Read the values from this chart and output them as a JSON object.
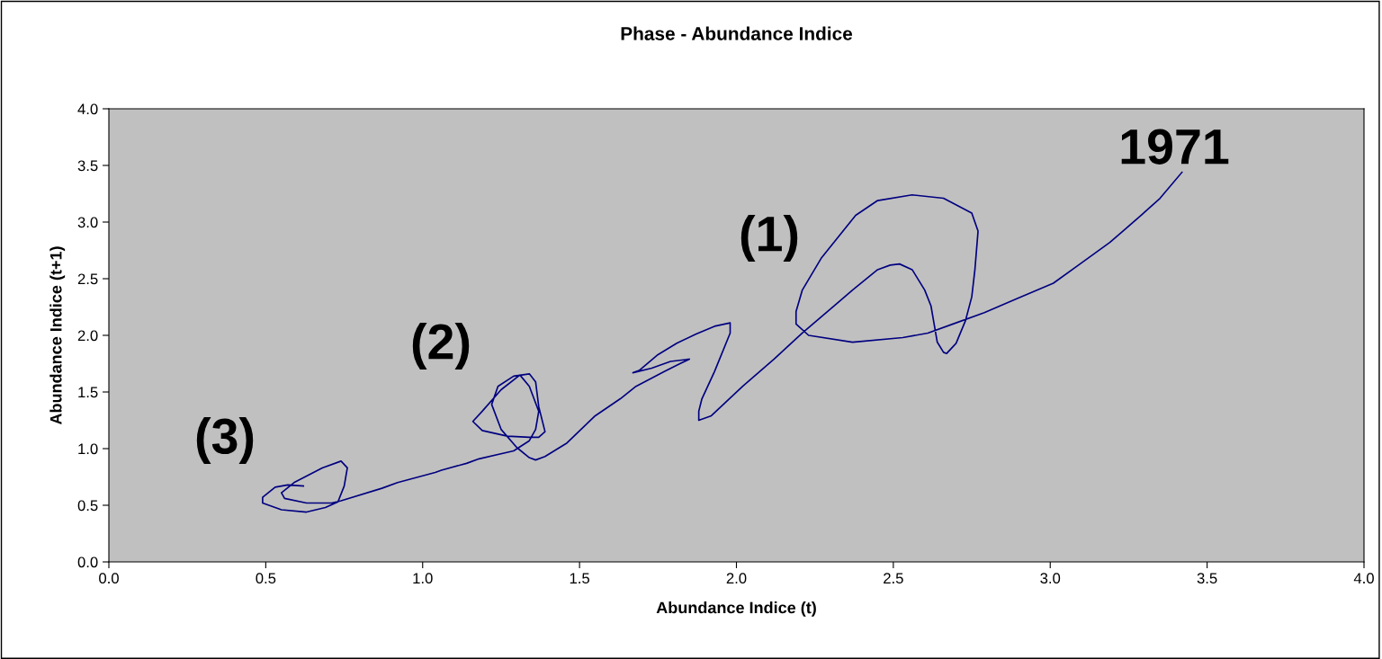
{
  "chart_data": {
    "type": "line",
    "title": "Phase - Abundance Indice",
    "xlabel": "Abundance Indice (t)",
    "ylabel": "Abundance Indice (t+1)",
    "xlim": [
      0,
      4
    ],
    "ylim": [
      0,
      4
    ],
    "xticks": [
      {
        "value": 0,
        "label": "0.0"
      },
      {
        "value": 0.5,
        "label": "0.5"
      },
      {
        "value": 1,
        "label": "1.0"
      },
      {
        "value": 1.5,
        "label": "1.5"
      },
      {
        "value": 2,
        "label": "2.0"
      },
      {
        "value": 2.5,
        "label": "2.5"
      },
      {
        "value": 3,
        "label": "3.0"
      },
      {
        "value": 3.5,
        "label": "3.5"
      },
      {
        "value": 4,
        "label": "4.0"
      }
    ],
    "yticks": [
      {
        "value": 0,
        "label": "0.0"
      },
      {
        "value": 0.5,
        "label": "0.5"
      },
      {
        "value": 1,
        "label": "1.0"
      },
      {
        "value": 1.5,
        "label": "1.5"
      },
      {
        "value": 2,
        "label": "2.0"
      },
      {
        "value": 2.5,
        "label": "2.5"
      },
      {
        "value": 3,
        "label": "3.0"
      },
      {
        "value": 3.5,
        "label": "3.5"
      },
      {
        "value": 4,
        "label": "4.0"
      }
    ],
    "grid": false,
    "marker": "none",
    "line_style": "solid",
    "series": [
      {
        "color": "#000080",
        "x": [
          3.42,
          3.35,
          3.29,
          3.19,
          3.09,
          3.01,
          2.89,
          2.79,
          2.69,
          2.61,
          2.53,
          2.37,
          2.23,
          2.19,
          2.19,
          2.21,
          2.27,
          2.38,
          2.45,
          2.56,
          2.66,
          2.75,
          2.77,
          2.76,
          2.75,
          2.73,
          2.7,
          2.67,
          2.66,
          2.64,
          2.63,
          2.62,
          2.6,
          2.56,
          2.52,
          2.49,
          2.45,
          2.37,
          2.32,
          2.21,
          2.12,
          2.02,
          1.92,
          1.88,
          1.88,
          1.89,
          1.93,
          1.98,
          1.98,
          1.98,
          1.93,
          1.87,
          1.81,
          1.75,
          1.69,
          1.67,
          1.73,
          1.79,
          1.85,
          1.82,
          1.77,
          1.68,
          1.63,
          1.55,
          1.46,
          1.39,
          1.36,
          1.34,
          1.3,
          1.25,
          1.22,
          1.24,
          1.29,
          1.34,
          1.36,
          1.37,
          1.39,
          1.37,
          1.34,
          1.27,
          1.19,
          1.16,
          1.19,
          1.25,
          1.31,
          1.34,
          1.37,
          1.36,
          1.34,
          1.29,
          1.18,
          1.14,
          1.06,
          1.04,
          0.92,
          0.87,
          0.74,
          0.71,
          0.63,
          0.56,
          0.55,
          0.59,
          0.68,
          0.74,
          0.76,
          0.75,
          0.73,
          0.69,
          0.63,
          0.55,
          0.49,
          0.49,
          0.53,
          0.57,
          0.62
        ],
        "values": [
          3.44,
          3.21,
          3.06,
          2.82,
          2.62,
          2.46,
          2.32,
          2.2,
          2.1,
          2.02,
          1.98,
          1.94,
          2.0,
          2.1,
          2.21,
          2.4,
          2.68,
          3.06,
          3.19,
          3.24,
          3.21,
          3.08,
          2.92,
          2.58,
          2.34,
          2.13,
          1.93,
          1.84,
          1.85,
          1.94,
          2.1,
          2.26,
          2.4,
          2.58,
          2.63,
          2.62,
          2.58,
          2.4,
          2.28,
          2.02,
          1.79,
          1.55,
          1.29,
          1.25,
          1.33,
          1.44,
          1.68,
          2.02,
          2.1,
          2.11,
          2.08,
          2.01,
          1.93,
          1.83,
          1.69,
          1.67,
          1.71,
          1.77,
          1.79,
          1.75,
          1.68,
          1.55,
          1.44,
          1.29,
          1.05,
          0.93,
          0.9,
          0.92,
          1.01,
          1.17,
          1.39,
          1.55,
          1.64,
          1.66,
          1.59,
          1.37,
          1.15,
          1.1,
          1.1,
          1.11,
          1.16,
          1.24,
          1.33,
          1.52,
          1.65,
          1.55,
          1.33,
          1.17,
          1.07,
          0.98,
          0.91,
          0.87,
          0.81,
          0.79,
          0.7,
          0.65,
          0.54,
          0.52,
          0.52,
          0.56,
          0.61,
          0.7,
          0.83,
          0.89,
          0.83,
          0.67,
          0.53,
          0.48,
          0.44,
          0.46,
          0.52,
          0.57,
          0.66,
          0.68,
          0.67
        ]
      }
    ],
    "annotations": [
      "1971",
      "(1)",
      "(2)",
      "(3)"
    ]
  }
}
